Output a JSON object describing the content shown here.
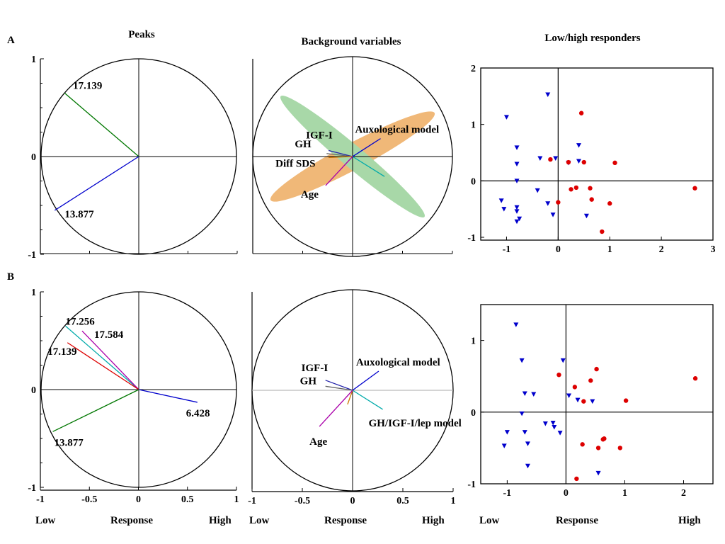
{
  "panel_labels": [
    "A",
    "B"
  ],
  "column_titles": {
    "peaks": "Peaks",
    "background": "Background variables",
    "responders": "Low/high responders"
  },
  "bottom_labels": {
    "left": {
      "low": "Low",
      "mid": "Response",
      "high": "High"
    },
    "middle": {
      "low": "Low",
      "mid": "Response",
      "high": "High"
    },
    "right": {
      "low": "Low",
      "mid": "Response",
      "high": "High"
    }
  },
  "colors": {
    "low_responder": "#0000cc",
    "high_responder": "#dd0000",
    "ellipse_orange": "#f0b878",
    "ellipse_green": "#a8d8a8"
  },
  "chart_data": [
    {
      "id": "A-peaks",
      "type": "scatter",
      "subtype": "loading-plot",
      "title": "Peaks",
      "xlim": [
        -1,
        1
      ],
      "ylim": [
        -1,
        1
      ],
      "yticks": [
        "-1",
        "0",
        "1"
      ],
      "xticks": [],
      "vectors": [
        {
          "label": "17.139",
          "x": -0.76,
          "y": 0.65,
          "color": "#007700"
        },
        {
          "label": "13.877",
          "x": -0.86,
          "y": -0.55,
          "color": "#0000cc"
        }
      ]
    },
    {
      "id": "A-background",
      "type": "scatter",
      "subtype": "loading-plot",
      "title": "Background variables",
      "xlim": [
        -1,
        1
      ],
      "ylim": [
        -1,
        1
      ],
      "xticks": [],
      "yticks": [],
      "ellipses": [
        {
          "cx": 0.0,
          "cy": 0.0,
          "rx": 0.93,
          "ry": 0.13,
          "angle_deg": -28,
          "color": "#f0b878"
        },
        {
          "cx": 0.0,
          "cy": 0.0,
          "rx": 0.94,
          "ry": 0.11,
          "angle_deg": 40,
          "color": "#a8d8a8"
        }
      ],
      "vectors": [
        {
          "label": "Auxological model",
          "x": 0.28,
          "y": 0.18,
          "color": "#0000cc"
        },
        {
          "label": "",
          "x": 0.32,
          "y": -0.2,
          "color": "#00aaaa"
        },
        {
          "label": "IGF-I",
          "x": -0.24,
          "y": 0.06,
          "color": "#2222aa"
        },
        {
          "label": "GH",
          "x": -0.26,
          "y": 0.03,
          "color": "#666666"
        },
        {
          "label": "Diff SDS",
          "x": -0.24,
          "y": -0.01,
          "color": "#cc7700"
        },
        {
          "label": "Age",
          "x": -0.27,
          "y": -0.29,
          "color": "#aa00aa"
        }
      ]
    },
    {
      "id": "A-responders",
      "type": "scatter",
      "title": "Low/high responders",
      "xlim": [
        -1.5,
        3.0
      ],
      "ylim": [
        -1.05,
        2.0
      ],
      "xticks": [
        "-1",
        "0",
        "1",
        "2",
        "3"
      ],
      "yticks": [
        "-1",
        "0",
        "1",
        "2"
      ],
      "series": [
        {
          "marker": "triangle-down",
          "color": "#0000cc",
          "points": [
            [
              -0.2,
              1.53
            ],
            [
              -1.0,
              1.13
            ],
            [
              -0.8,
              0.59
            ],
            [
              -0.8,
              0.3
            ],
            [
              -0.8,
              0.0
            ],
            [
              -1.1,
              -0.35
            ],
            [
              -1.05,
              -0.5
            ],
            [
              -0.8,
              -0.47
            ],
            [
              -0.8,
              -0.54
            ],
            [
              -0.75,
              -0.67
            ],
            [
              -0.8,
              -0.72
            ],
            [
              -0.35,
              0.4
            ],
            [
              -0.05,
              0.4
            ],
            [
              0.2,
              0.32
            ],
            [
              0.4,
              0.63
            ],
            [
              -0.4,
              -0.17
            ],
            [
              0.4,
              0.35
            ],
            [
              -0.2,
              -0.4
            ],
            [
              -0.1,
              -0.6
            ],
            [
              0.55,
              -0.62
            ]
          ]
        },
        {
          "marker": "circle",
          "color": "#dd0000",
          "points": [
            [
              0.45,
              1.2
            ],
            [
              -0.15,
              0.38
            ],
            [
              0.2,
              0.33
            ],
            [
              0.5,
              0.33
            ],
            [
              1.1,
              0.32
            ],
            [
              0.25,
              -0.15
            ],
            [
              0.35,
              -0.12
            ],
            [
              0.62,
              -0.13
            ],
            [
              0.0,
              -0.38
            ],
            [
              0.65,
              -0.33
            ],
            [
              1.0,
              -0.4
            ],
            [
              0.85,
              -0.9
            ],
            [
              2.65,
              -0.13
            ]
          ]
        }
      ]
    },
    {
      "id": "B-peaks",
      "type": "scatter",
      "subtype": "loading-plot",
      "xlim": [
        -1,
        1
      ],
      "ylim": [
        -1,
        1
      ],
      "yticks": [
        "-1",
        "0",
        "1"
      ],
      "xticks": [
        "-1",
        "-0.5",
        "0",
        "0.5",
        "1"
      ],
      "vectors": [
        {
          "label": "17.256",
          "x": -0.75,
          "y": 0.65,
          "color": "#00aaaa"
        },
        {
          "label": "17.584",
          "x": -0.58,
          "y": 0.6,
          "color": "#aa00aa"
        },
        {
          "label": "17.139",
          "x": -0.73,
          "y": 0.48,
          "color": "#dd0000"
        },
        {
          "label": "6.428",
          "x": 0.6,
          "y": -0.13,
          "color": "#0000cc"
        },
        {
          "label": "13.877",
          "x": -0.88,
          "y": -0.43,
          "color": "#007700"
        }
      ]
    },
    {
      "id": "B-background",
      "type": "scatter",
      "subtype": "loading-plot",
      "xlim": [
        -1,
        1
      ],
      "ylim": [
        -1,
        1
      ],
      "xticks": [
        "-1",
        "-0.5",
        "0",
        "0.5",
        "1"
      ],
      "yticks": [],
      "vectors": [
        {
          "label": "Auxological model",
          "x": 0.26,
          "y": 0.19,
          "color": "#0000cc"
        },
        {
          "label": "GH/IGF-I/lep model",
          "x": 0.3,
          "y": -0.19,
          "color": "#00aaaa"
        },
        {
          "label": "IGF-I",
          "x": -0.27,
          "y": 0.1,
          "color": "#2222aa"
        },
        {
          "label": "GH",
          "x": -0.27,
          "y": 0.04,
          "color": "#666666"
        },
        {
          "label": "",
          "x": -0.05,
          "y": -0.14,
          "color": "#cc7700"
        },
        {
          "label": "Age",
          "x": -0.33,
          "y": -0.36,
          "color": "#aa00aa"
        }
      ]
    },
    {
      "id": "B-responders",
      "type": "scatter",
      "xlim": [
        -1.45,
        2.5
      ],
      "ylim": [
        -1.0,
        1.5
      ],
      "xticks": [
        "-1",
        "0",
        "1",
        "2"
      ],
      "yticks": [
        "-1",
        "0",
        "1"
      ],
      "series": [
        {
          "marker": "triangle-down",
          "color": "#0000cc",
          "points": [
            [
              -0.85,
              1.22
            ],
            [
              -0.75,
              0.72
            ],
            [
              -0.7,
              0.26
            ],
            [
              -0.55,
              0.25
            ],
            [
              -0.05,
              0.72
            ],
            [
              0.05,
              0.23
            ],
            [
              0.2,
              0.17
            ],
            [
              0.45,
              0.15
            ],
            [
              -0.75,
              -0.02
            ],
            [
              -1.0,
              -0.28
            ],
            [
              -1.05,
              -0.47
            ],
            [
              -0.7,
              -0.28
            ],
            [
              -0.65,
              -0.44
            ],
            [
              -0.35,
              -0.16
            ],
            [
              -0.22,
              -0.15
            ],
            [
              -0.2,
              -0.21
            ],
            [
              -0.1,
              -0.29
            ],
            [
              -0.65,
              -0.75
            ],
            [
              0.55,
              -0.85
            ]
          ]
        },
        {
          "marker": "circle",
          "color": "#dd0000",
          "points": [
            [
              -0.12,
              0.52
            ],
            [
              0.15,
              0.35
            ],
            [
              0.42,
              0.44
            ],
            [
              0.52,
              0.6
            ],
            [
              0.3,
              0.15
            ],
            [
              1.02,
              0.16
            ],
            [
              2.2,
              0.47
            ],
            [
              0.28,
              -0.45
            ],
            [
              0.65,
              -0.37
            ],
            [
              0.63,
              -0.38
            ],
            [
              0.55,
              -0.5
            ],
            [
              0.92,
              -0.5
            ],
            [
              0.18,
              -0.93
            ]
          ]
        }
      ]
    }
  ]
}
